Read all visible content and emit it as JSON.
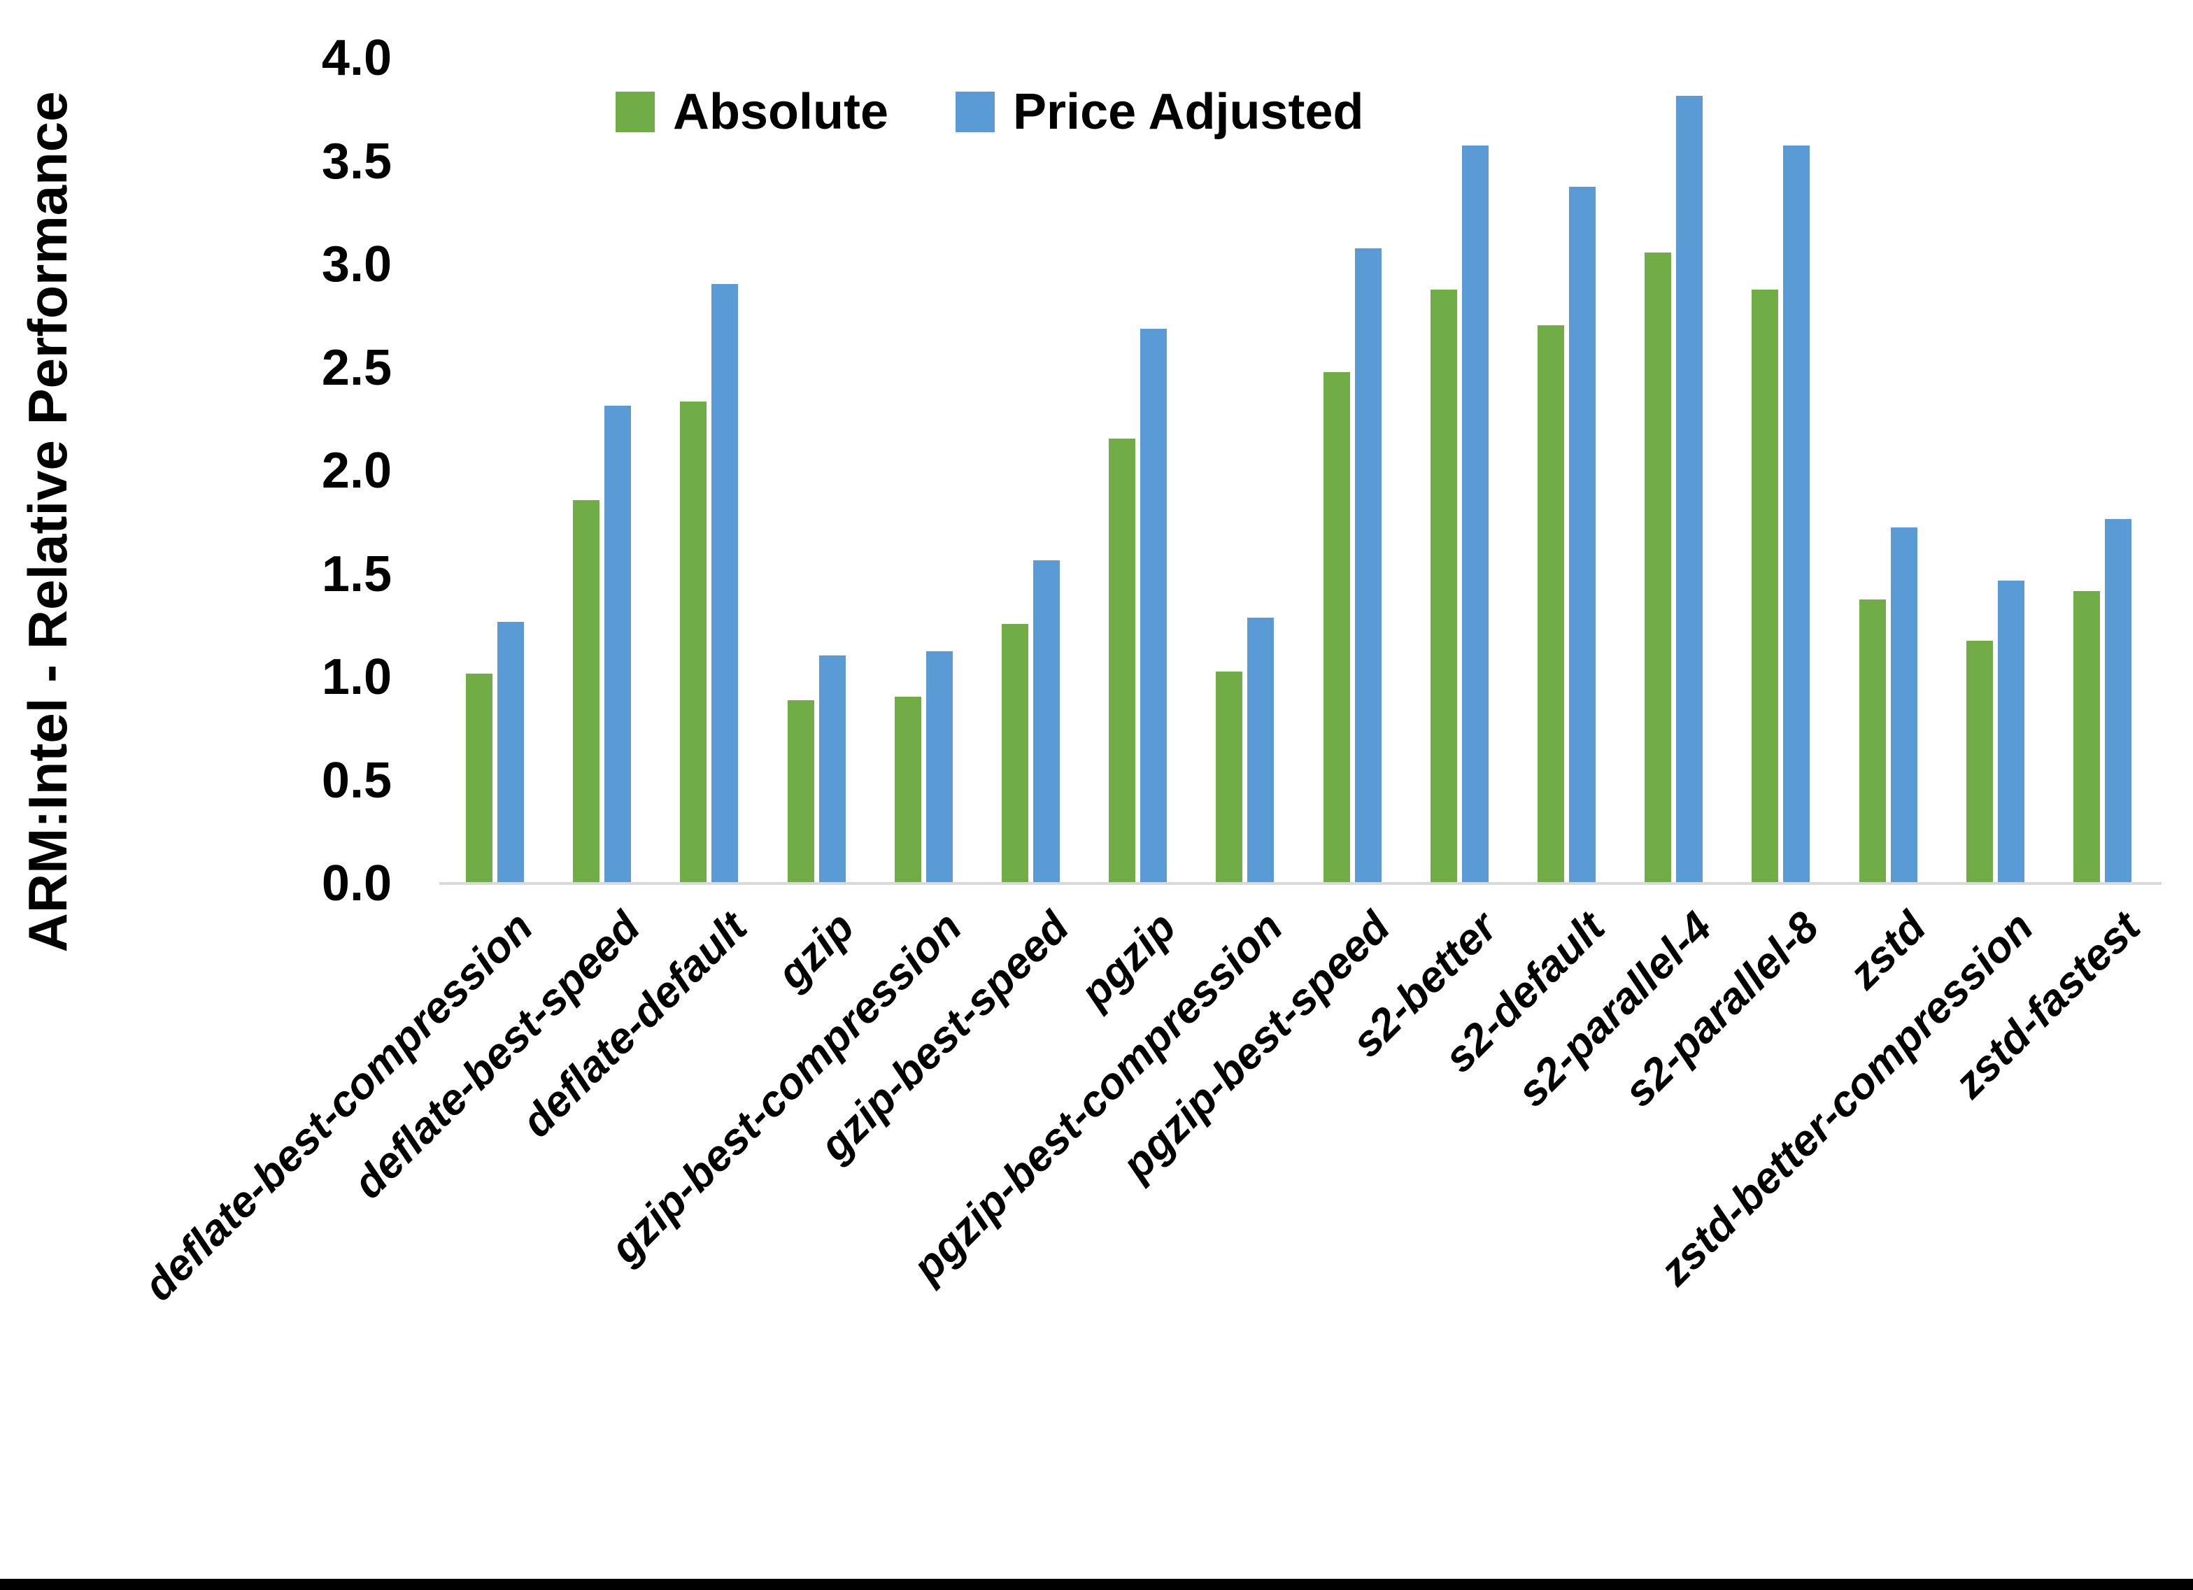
{
  "chart_data": {
    "type": "bar",
    "title": "",
    "xlabel": "",
    "ylabel": "ARM:Intel - Relative Performance",
    "ylim": [
      0.0,
      4.0
    ],
    "y_tick_step": 0.5,
    "y_ticks": [
      "0.0",
      "0.5",
      "1.0",
      "1.5",
      "2.0",
      "2.5",
      "3.0",
      "3.5",
      "4.0"
    ],
    "grid": "off",
    "legend_position": "top-center",
    "categories": [
      "deflate-best-compression",
      "deflate-best-speed",
      "deflate-default",
      "gzip",
      "gzip-best-compression",
      "gzip-best-speed",
      "pgzip",
      "pgzip-best-compression",
      "pgzip-best-speed",
      "s2-better",
      "s2-default",
      "s2-parallel-4",
      "s2-parallel-8",
      "zstd",
      "zstd-better-compression",
      "zstd-fastest"
    ],
    "series": [
      {
        "name": "Absolute",
        "color": "#70AD47",
        "values": [
          1.01,
          1.85,
          2.33,
          0.88,
          0.9,
          1.25,
          2.15,
          1.02,
          2.47,
          2.87,
          2.7,
          3.05,
          2.87,
          1.37,
          1.17,
          1.41
        ]
      },
      {
        "name": "Price Adjusted",
        "color": "#5B9BD5",
        "values": [
          1.26,
          2.31,
          2.9,
          1.1,
          1.12,
          1.56,
          2.68,
          1.28,
          3.07,
          3.57,
          3.37,
          3.81,
          3.57,
          1.72,
          1.46,
          1.76
        ]
      }
    ]
  },
  "colors": {
    "background": "#FFFFFF",
    "axis_line": "#D9D9D9",
    "text": "#000000",
    "bottom_border": "#000000"
  }
}
